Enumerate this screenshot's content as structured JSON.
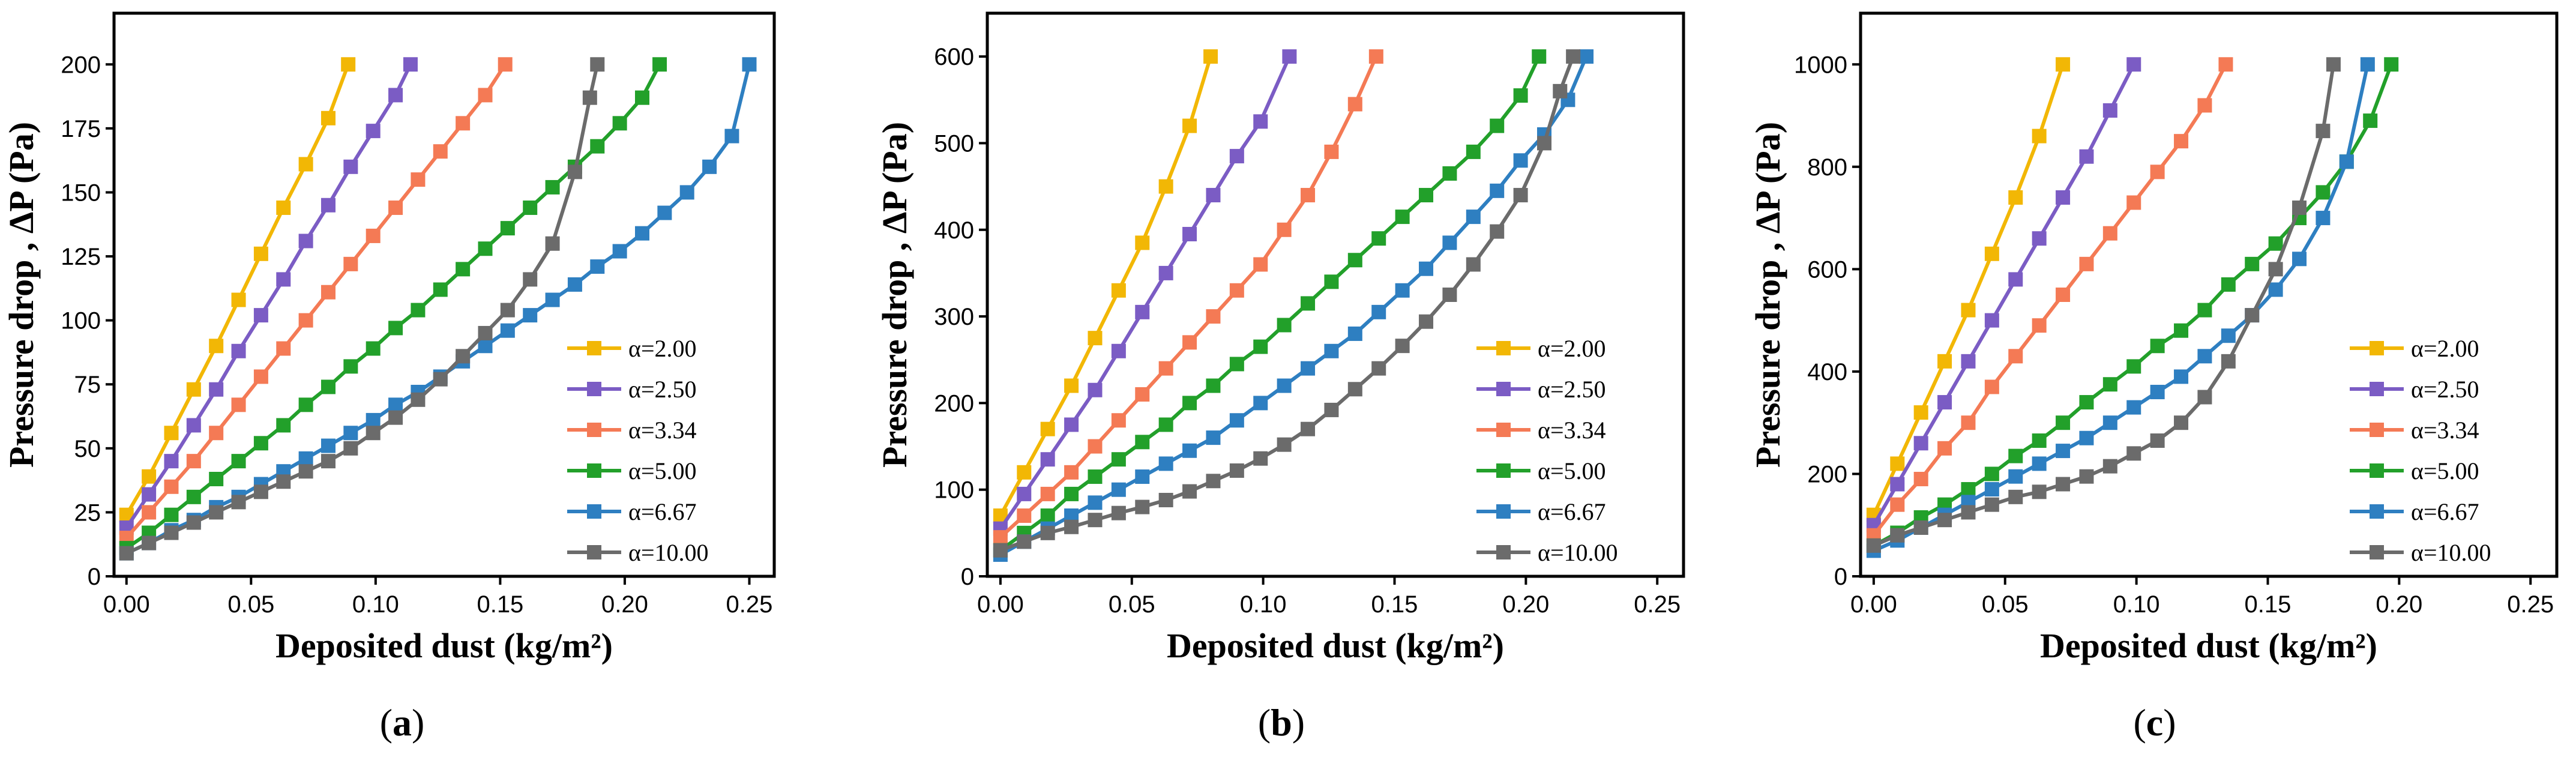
{
  "figure": {
    "panels": [
      {
        "label_open": "(",
        "label_letter": "a",
        "label_close": ")"
      },
      {
        "label_open": "(",
        "label_letter": "b",
        "label_close": ")"
      },
      {
        "label_open": "(",
        "label_letter": "c",
        "label_close": ")"
      }
    ]
  },
  "chart_data": [
    {
      "type": "line",
      "xlabel": "Deposited dust (kg/m²)",
      "ylabel": "Pressure drop , ΔP (Pa)",
      "xlim": [
        -0.005,
        0.26
      ],
      "ylim": [
        0,
        220
      ],
      "xticks": [
        0.0,
        0.05,
        0.1,
        0.15,
        0.2,
        0.25
      ],
      "xtick_labels": [
        "0.00",
        "0.05",
        "0.10",
        "0.15",
        "0.20",
        "0.25"
      ],
      "yticks": [
        0,
        25,
        50,
        75,
        100,
        125,
        150,
        175,
        200
      ],
      "ytick_labels": [
        "0",
        "25",
        "50",
        "75",
        "100",
        "125",
        "150",
        "175",
        "200"
      ],
      "legend_position": "bottom-right",
      "series": [
        {
          "name": "α=2.00",
          "color": "#F2B705",
          "x": [
            0,
            0.009,
            0.018,
            0.027,
            0.036,
            0.045,
            0.054,
            0.063,
            0.072,
            0.081,
            0.089
          ],
          "y": [
            24,
            39,
            56,
            73,
            90,
            108,
            126,
            144,
            161,
            179,
            200
          ]
        },
        {
          "name": "α=2.50",
          "color": "#7B5CC4",
          "x": [
            0,
            0.009,
            0.018,
            0.027,
            0.036,
            0.045,
            0.054,
            0.063,
            0.072,
            0.081,
            0.09,
            0.099,
            0.108,
            0.114
          ],
          "y": [
            19,
            32,
            45,
            59,
            73,
            88,
            102,
            116,
            131,
            145,
            160,
            174,
            188,
            200
          ]
        },
        {
          "name": "α=3.34",
          "color": "#F47A55",
          "x": [
            0,
            0.009,
            0.018,
            0.027,
            0.036,
            0.045,
            0.054,
            0.063,
            0.072,
            0.081,
            0.09,
            0.099,
            0.108,
            0.117,
            0.126,
            0.135,
            0.144,
            0.152
          ],
          "y": [
            15,
            25,
            35,
            45,
            56,
            67,
            78,
            89,
            100,
            111,
            122,
            133,
            144,
            155,
            166,
            177,
            188,
            200
          ]
        },
        {
          "name": "α=5.00",
          "color": "#22A02A",
          "x": [
            0,
            0.009,
            0.018,
            0.027,
            0.036,
            0.045,
            0.054,
            0.063,
            0.072,
            0.081,
            0.09,
            0.099,
            0.108,
            0.117,
            0.126,
            0.135,
            0.144,
            0.153,
            0.162,
            0.171,
            0.18,
            0.189,
            0.198,
            0.207,
            0.214
          ],
          "y": [
            11,
            17,
            24,
            31,
            38,
            45,
            52,
            59,
            67,
            74,
            82,
            89,
            97,
            104,
            112,
            120,
            128,
            136,
            144,
            152,
            160,
            168,
            177,
            187,
            200
          ]
        },
        {
          "name": "α=6.67",
          "color": "#2E7FC1",
          "x": [
            0,
            0.009,
            0.018,
            0.027,
            0.036,
            0.045,
            0.054,
            0.063,
            0.072,
            0.081,
            0.09,
            0.099,
            0.108,
            0.117,
            0.126,
            0.135,
            0.144,
            0.153,
            0.162,
            0.171,
            0.18,
            0.189,
            0.198,
            0.207,
            0.216,
            0.225,
            0.234,
            0.243,
            0.25
          ],
          "y": [
            9,
            13,
            18,
            22,
            27,
            31,
            36,
            41,
            46,
            51,
            56,
            61,
            67,
            72,
            78,
            84,
            90,
            96,
            102,
            108,
            114,
            121,
            127,
            134,
            142,
            150,
            160,
            172,
            200
          ]
        },
        {
          "name": "α=10.00",
          "color": "#6B6B6B",
          "x": [
            0,
            0.009,
            0.018,
            0.027,
            0.036,
            0.045,
            0.054,
            0.063,
            0.072,
            0.081,
            0.09,
            0.099,
            0.108,
            0.117,
            0.126,
            0.135,
            0.144,
            0.153,
            0.162,
            0.171,
            0.18,
            0.186,
            0.189
          ],
          "y": [
            9,
            13,
            17,
            21,
            25,
            29,
            33,
            37,
            41,
            45,
            50,
            56,
            62,
            69,
            77,
            86,
            95,
            104,
            116,
            130,
            158,
            187,
            200
          ]
        }
      ]
    },
    {
      "type": "line",
      "xlabel": "Deposited dust (kg/m²)",
      "ylabel": "Pressure drop , ΔP (Pa)",
      "xlim": [
        -0.005,
        0.26
      ],
      "ylim": [
        0,
        650
      ],
      "xticks": [
        0.0,
        0.05,
        0.1,
        0.15,
        0.2,
        0.25
      ],
      "xtick_labels": [
        "0.00",
        "0.05",
        "0.10",
        "0.15",
        "0.20",
        "0.25"
      ],
      "yticks": [
        0,
        100,
        200,
        300,
        400,
        500,
        600
      ],
      "ytick_labels": [
        "0",
        "100",
        "200",
        "300",
        "400",
        "500",
        "600"
      ],
      "legend_position": "bottom-right",
      "series": [
        {
          "name": "α=2.00",
          "color": "#F2B705",
          "x": [
            0,
            0.009,
            0.018,
            0.027,
            0.036,
            0.045,
            0.054,
            0.063,
            0.072,
            0.08
          ],
          "y": [
            70,
            120,
            170,
            220,
            275,
            330,
            385,
            450,
            520,
            600
          ]
        },
        {
          "name": "α=2.50",
          "color": "#7B5CC4",
          "x": [
            0,
            0.009,
            0.018,
            0.027,
            0.036,
            0.045,
            0.054,
            0.063,
            0.072,
            0.081,
            0.09,
            0.099,
            0.11
          ],
          "y": [
            55,
            95,
            135,
            175,
            215,
            260,
            305,
            350,
            395,
            440,
            485,
            525,
            600
          ]
        },
        {
          "name": "α=3.34",
          "color": "#F47A55",
          "x": [
            0,
            0.009,
            0.018,
            0.027,
            0.036,
            0.045,
            0.054,
            0.063,
            0.072,
            0.081,
            0.09,
            0.099,
            0.108,
            0.117,
            0.126,
            0.135,
            0.143
          ],
          "y": [
            45,
            70,
            95,
            120,
            150,
            180,
            210,
            240,
            270,
            300,
            330,
            360,
            400,
            440,
            490,
            545,
            600
          ]
        },
        {
          "name": "α=5.00",
          "color": "#22A02A",
          "x": [
            0,
            0.009,
            0.018,
            0.027,
            0.036,
            0.045,
            0.054,
            0.063,
            0.072,
            0.081,
            0.09,
            0.099,
            0.108,
            0.117,
            0.126,
            0.135,
            0.144,
            0.153,
            0.162,
            0.171,
            0.18,
            0.189,
            0.198,
            0.205
          ],
          "y": [
            30,
            50,
            70,
            95,
            115,
            135,
            155,
            175,
            200,
            220,
            245,
            265,
            290,
            315,
            340,
            365,
            390,
            415,
            440,
            465,
            490,
            520,
            555,
            600
          ]
        },
        {
          "name": "α=6.67",
          "color": "#2E7FC1",
          "x": [
            0,
            0.009,
            0.018,
            0.027,
            0.036,
            0.045,
            0.054,
            0.063,
            0.072,
            0.081,
            0.09,
            0.099,
            0.108,
            0.117,
            0.126,
            0.135,
            0.144,
            0.153,
            0.162,
            0.171,
            0.18,
            0.189,
            0.198,
            0.207,
            0.216,
            0.223
          ],
          "y": [
            25,
            40,
            55,
            70,
            85,
            100,
            115,
            130,
            145,
            160,
            180,
            200,
            220,
            240,
            260,
            280,
            305,
            330,
            355,
            385,
            415,
            445,
            480,
            510,
            550,
            600
          ]
        },
        {
          "name": "α=10.00",
          "color": "#6B6B6B",
          "x": [
            0,
            0.009,
            0.018,
            0.027,
            0.036,
            0.045,
            0.054,
            0.063,
            0.072,
            0.081,
            0.09,
            0.099,
            0.108,
            0.117,
            0.126,
            0.135,
            0.144,
            0.153,
            0.162,
            0.171,
            0.18,
            0.189,
            0.198,
            0.207,
            0.213,
            0.218
          ],
          "y": [
            30,
            40,
            50,
            57,
            65,
            73,
            80,
            88,
            98,
            110,
            122,
            136,
            152,
            170,
            192,
            216,
            240,
            266,
            294,
            325,
            360,
            398,
            440,
            500,
            560,
            600
          ]
        }
      ]
    },
    {
      "type": "line",
      "xlabel": "Deposited dust (kg/m²)",
      "ylabel": "Pressure drop , ΔP (Pa)",
      "xlim": [
        -0.005,
        0.26
      ],
      "ylim": [
        0,
        1100
      ],
      "xticks": [
        0.0,
        0.05,
        0.1,
        0.15,
        0.2,
        0.25
      ],
      "xtick_labels": [
        "0.00",
        "0.05",
        "0.10",
        "0.15",
        "0.20",
        "0.25"
      ],
      "yticks": [
        0,
        200,
        400,
        600,
        800,
        1000
      ],
      "ytick_labels": [
        "0",
        "200",
        "400",
        "600",
        "800",
        "1000"
      ],
      "legend_position": "bottom-right",
      "series": [
        {
          "name": "α=2.00",
          "color": "#F2B705",
          "x": [
            0,
            0.009,
            0.018,
            0.027,
            0.036,
            0.045,
            0.054,
            0.063,
            0.072
          ],
          "y": [
            120,
            220,
            320,
            420,
            520,
            630,
            740,
            860,
            1000
          ]
        },
        {
          "name": "α=2.50",
          "color": "#7B5CC4",
          "x": [
            0,
            0.009,
            0.018,
            0.027,
            0.036,
            0.045,
            0.054,
            0.063,
            0.072,
            0.081,
            0.09,
            0.099
          ],
          "y": [
            100,
            180,
            260,
            340,
            420,
            500,
            580,
            660,
            740,
            820,
            910,
            1000
          ]
        },
        {
          "name": "α=3.34",
          "color": "#F47A55",
          "x": [
            0,
            0.009,
            0.018,
            0.027,
            0.036,
            0.045,
            0.054,
            0.063,
            0.072,
            0.081,
            0.09,
            0.099,
            0.108,
            0.117,
            0.126,
            0.134
          ],
          "y": [
            80,
            140,
            190,
            250,
            300,
            370,
            430,
            490,
            550,
            610,
            670,
            730,
            790,
            850,
            920,
            1000
          ]
        },
        {
          "name": "α=5.00",
          "color": "#22A02A",
          "x": [
            0,
            0.009,
            0.018,
            0.027,
            0.036,
            0.045,
            0.054,
            0.063,
            0.072,
            0.081,
            0.09,
            0.099,
            0.108,
            0.117,
            0.126,
            0.135,
            0.144,
            0.153,
            0.162,
            0.171,
            0.18,
            0.189,
            0.197
          ],
          "y": [
            60,
            85,
            115,
            140,
            170,
            200,
            235,
            265,
            300,
            340,
            375,
            410,
            450,
            480,
            520,
            570,
            610,
            650,
            700,
            750,
            810,
            890,
            1000
          ]
        },
        {
          "name": "α=6.67",
          "color": "#2E7FC1",
          "x": [
            0,
            0.009,
            0.018,
            0.027,
            0.036,
            0.045,
            0.054,
            0.063,
            0.072,
            0.081,
            0.09,
            0.099,
            0.108,
            0.117,
            0.126,
            0.135,
            0.144,
            0.153,
            0.162,
            0.171,
            0.18,
            0.188
          ],
          "y": [
            50,
            70,
            95,
            120,
            145,
            170,
            195,
            220,
            245,
            270,
            300,
            330,
            360,
            390,
            430,
            470,
            510,
            560,
            620,
            700,
            810,
            1000
          ]
        },
        {
          "name": "α=10.00",
          "color": "#6B6B6B",
          "x": [
            0,
            0.009,
            0.018,
            0.027,
            0.036,
            0.045,
            0.054,
            0.063,
            0.072,
            0.081,
            0.09,
            0.099,
            0.108,
            0.117,
            0.126,
            0.135,
            0.144,
            0.153,
            0.162,
            0.171,
            0.175
          ],
          "y": [
            60,
            80,
            95,
            110,
            125,
            140,
            155,
            165,
            180,
            195,
            215,
            240,
            265,
            300,
            350,
            420,
            510,
            600,
            720,
            870,
            1000
          ]
        }
      ]
    }
  ]
}
